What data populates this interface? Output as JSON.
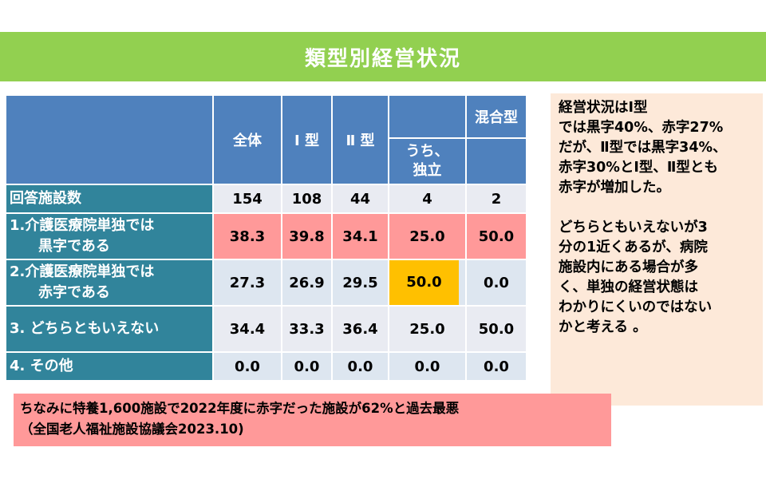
{
  "title": "類型別経営状況",
  "table": {
    "headers": {
      "all": "全体",
      "type1": "Ⅰ 型",
      "type2": "Ⅱ 型",
      "independent": "うち、独立",
      "mixed": "混合型"
    },
    "rows": [
      {
        "label_line1": "回答施設数",
        "label_line2": "",
        "values": [
          "154",
          "108",
          "44",
          "4",
          "2"
        ]
      },
      {
        "label_line1": "1.介護医療院単独では",
        "label_line2": "黒字である",
        "values": [
          "38.3",
          "39.8",
          "34.1",
          "25.0",
          "50.0"
        ]
      },
      {
        "label_line1": "2.介護医療院単独では",
        "label_line2": "赤字である",
        "values": [
          "27.3",
          "26.9",
          "29.5",
          "50.0",
          "0.0"
        ]
      },
      {
        "label_line1": "3.  どちらともいえない",
        "label_line2": "",
        "values": [
          "34.4",
          "33.3",
          "36.4",
          "25.0",
          "50.0"
        ]
      },
      {
        "label_line1": "4.  その他",
        "label_line2": "",
        "values": [
          "0.0",
          "0.0",
          "0.0",
          "0.0",
          "0.0"
        ]
      }
    ]
  },
  "note": {
    "para1_l1": "経営状況はⅠ型",
    "para1_l2": "では黒字40%、赤字27%",
    "para1_l3": "だが、Ⅱ型では黒字34%、",
    "para1_l4": "赤字30%とⅠ型、Ⅱ型とも",
    "para1_l5": "赤字が増加した。",
    "para2_l1": "どちらともいえないが3",
    "para2_l2": "分の1近くあるが、病院",
    "para2_l3": "施設内にある場合が多",
    "para2_l4": "く、単独の経営状態は",
    "para2_l5": "わかりにくいのではない",
    "para2_l6": "かと考える 。"
  },
  "footnote": {
    "line1": "ちなみに特養1,600施設で2022年度に赤字だった施設が62%と過去最悪",
    "line2": "（全国老人福祉施設協議会2023.10)"
  },
  "colors": {
    "banner": "#92d050",
    "header": "#4f81bd",
    "row_label": "#31849b",
    "highlight_pink": "#ff9999",
    "highlight_orange": "#ffc000",
    "note_bg": "#fde9d9"
  }
}
